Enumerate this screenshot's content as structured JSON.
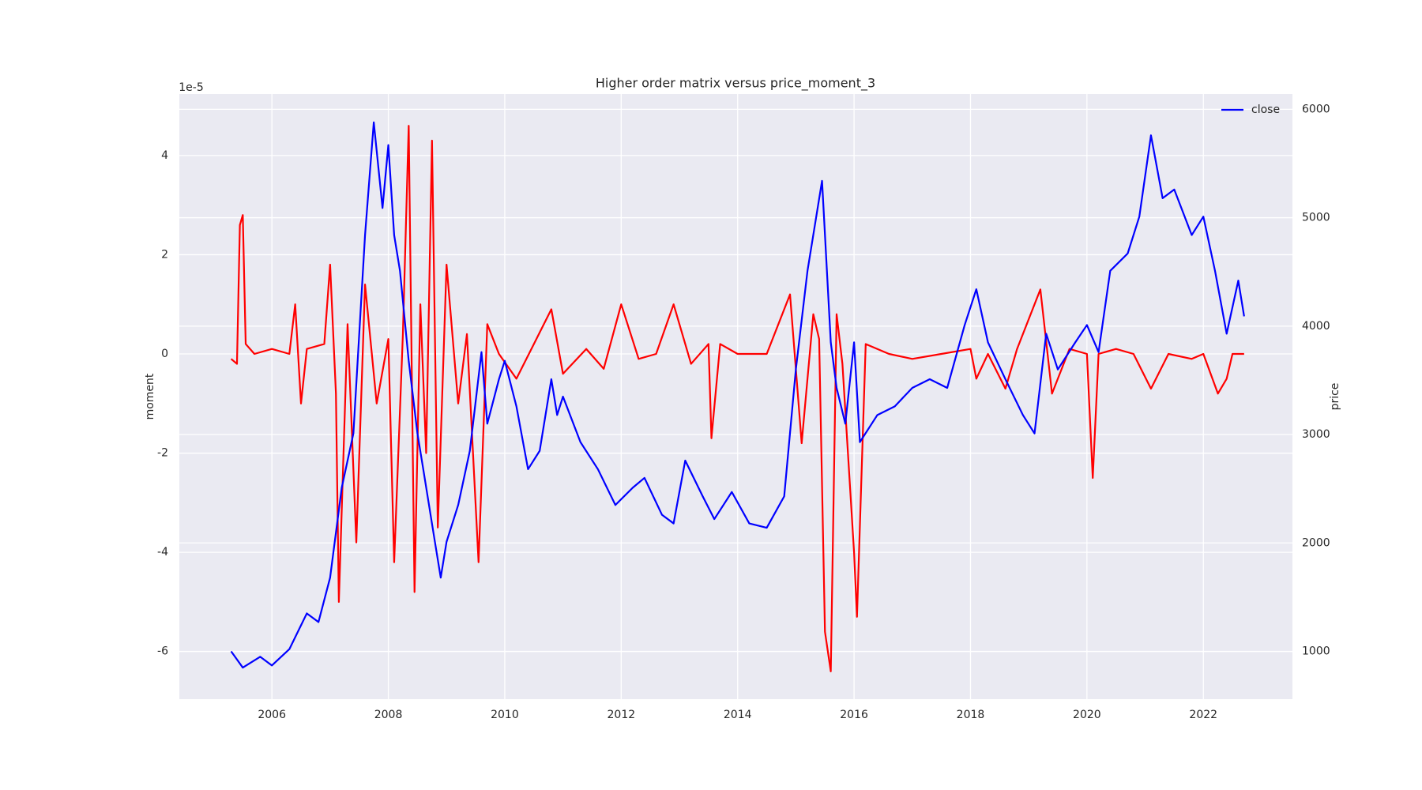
{
  "chart_data": {
    "type": "line",
    "title": "Higher order matrix versus price_moment_3",
    "y_label": "moment",
    "y2_label": "price",
    "y_offset_label": "1e-5",
    "xlim": [
      2004.41,
      2023.53
    ],
    "xticks": [
      2006,
      2008,
      2010,
      2012,
      2014,
      2016,
      2018,
      2020,
      2022
    ],
    "ylim": [
      -6.96,
      5.24
    ],
    "yticks": [
      -6,
      -4,
      -2,
      0,
      2,
      4
    ],
    "y2lim": [
      559,
      6141
    ],
    "y2ticks": [
      1000,
      2000,
      3000,
      4000,
      5000,
      6000
    ],
    "grid": true,
    "legend": "upper right",
    "series": [
      {
        "color": "#ff0000",
        "x": [
          2005.3,
          2005.4,
          2005.45,
          2005.5,
          2005.55,
          2005.7,
          2006.0,
          2006.3,
          2006.4,
          2006.5,
          2006.6,
          2006.9,
          2007.0,
          2007.1,
          2007.15,
          2007.3,
          2007.45,
          2007.6,
          2007.8,
          2008.0,
          2008.1,
          2008.25,
          2008.35,
          2008.45,
          2008.55,
          2008.65,
          2008.75,
          2008.85,
          2009.0,
          2009.2,
          2009.35,
          2009.55,
          2009.7,
          2009.9,
          2010.2,
          2010.5,
          2010.8,
          2011.0,
          2011.4,
          2011.7,
          2012.0,
          2012.3,
          2012.6,
          2012.9,
          2013.2,
          2013.5,
          2013.55,
          2013.7,
          2014.0,
          2014.5,
          2014.9,
          2015.1,
          2015.3,
          2015.4,
          2015.5,
          2015.6,
          2015.7,
          2015.8,
          2016.0,
          2016.05,
          2016.2,
          2016.6,
          2017.0,
          2017.5,
          2018.0,
          2018.1,
          2018.3,
          2018.6,
          2018.8,
          2019.2,
          2019.4,
          2019.7,
          2020.0,
          2020.1,
          2020.2,
          2020.5,
          2020.8,
          2021.1,
          2021.4,
          2021.8,
          2022.0,
          2022.25,
          2022.4,
          2022.5,
          2022.7
        ],
        "values": [
          -0.1,
          -0.2,
          2.6,
          2.8,
          0.2,
          0.0,
          0.1,
          0.0,
          1.0,
          -1.0,
          0.1,
          0.2,
          1.8,
          -0.8,
          -5.0,
          0.6,
          -3.8,
          1.4,
          -1.0,
          0.3,
          -4.2,
          0.4,
          4.6,
          -4.8,
          1.0,
          -2.0,
          4.3,
          -3.5,
          1.8,
          -1.0,
          0.4,
          -4.2,
          0.6,
          0.0,
          -0.5,
          0.2,
          0.9,
          -0.4,
          0.1,
          -0.3,
          1.0,
          -0.1,
          0.0,
          1.0,
          -0.2,
          0.2,
          -1.7,
          0.2,
          0.0,
          0.0,
          1.2,
          -1.8,
          0.8,
          0.3,
          -5.6,
          -6.4,
          0.8,
          -0.2,
          -4.0,
          -5.3,
          0.2,
          0.0,
          -0.1,
          0.0,
          0.1,
          -0.5,
          0.0,
          -0.7,
          0.1,
          1.3,
          -0.8,
          0.1,
          0.0,
          -2.5,
          0.0,
          0.1,
          0.0,
          -0.7,
          0.0,
          -0.1,
          0.0,
          -0.8,
          -0.5,
          0.0,
          0.0
        ]
      },
      {
        "name": "close",
        "color": "#0000ff",
        "axis": "y2",
        "x": [
          2005.3,
          2005.5,
          2005.8,
          2006.0,
          2006.3,
          2006.6,
          2006.8,
          2007.0,
          2007.2,
          2007.4,
          2007.6,
          2007.75,
          2007.9,
          2008.0,
          2008.1,
          2008.2,
          2008.35,
          2008.5,
          2008.6,
          2008.8,
          2008.9,
          2009.0,
          2009.2,
          2009.4,
          2009.6,
          2009.7,
          2009.9,
          2010.0,
          2010.2,
          2010.4,
          2010.6,
          2010.8,
          2010.9,
          2011.0,
          2011.3,
          2011.6,
          2011.9,
          2012.2,
          2012.4,
          2012.7,
          2012.9,
          2013.1,
          2013.4,
          2013.6,
          2013.9,
          2014.2,
          2014.5,
          2014.8,
          2015.0,
          2015.2,
          2015.45,
          2015.6,
          2015.7,
          2015.85,
          2016.0,
          2016.1,
          2016.4,
          2016.7,
          2017.0,
          2017.3,
          2017.6,
          2017.9,
          2018.1,
          2018.3,
          2018.6,
          2018.9,
          2019.1,
          2019.3,
          2019.5,
          2019.8,
          2020.0,
          2020.2,
          2020.4,
          2020.7,
          2020.9,
          2021.1,
          2021.3,
          2021.5,
          2021.8,
          2022.0,
          2022.2,
          2022.4,
          2022.6,
          2022.7
        ],
        "values": [
          1000,
          850,
          950,
          870,
          1020,
          1350,
          1270,
          1680,
          2510,
          3010,
          4840,
          5880,
          5090,
          5670,
          4840,
          4510,
          3680,
          3010,
          2680,
          2010,
          1680,
          2010,
          2350,
          2850,
          3760,
          3100,
          3510,
          3680,
          3260,
          2680,
          2850,
          3510,
          3180,
          3350,
          2930,
          2680,
          2350,
          2510,
          2600,
          2260,
          2180,
          2760,
          2430,
          2220,
          2470,
          2180,
          2140,
          2430,
          3600,
          4510,
          5340,
          3850,
          3430,
          3100,
          3850,
          2930,
          3180,
          3260,
          3430,
          3510,
          3430,
          4010,
          4340,
          3850,
          3510,
          3180,
          3010,
          3930,
          3600,
          3850,
          4010,
          3760,
          4510,
          4670,
          5010,
          5760,
          5180,
          5260,
          4840,
          5010,
          4510,
          3930,
          4420,
          4090
        ]
      }
    ]
  }
}
